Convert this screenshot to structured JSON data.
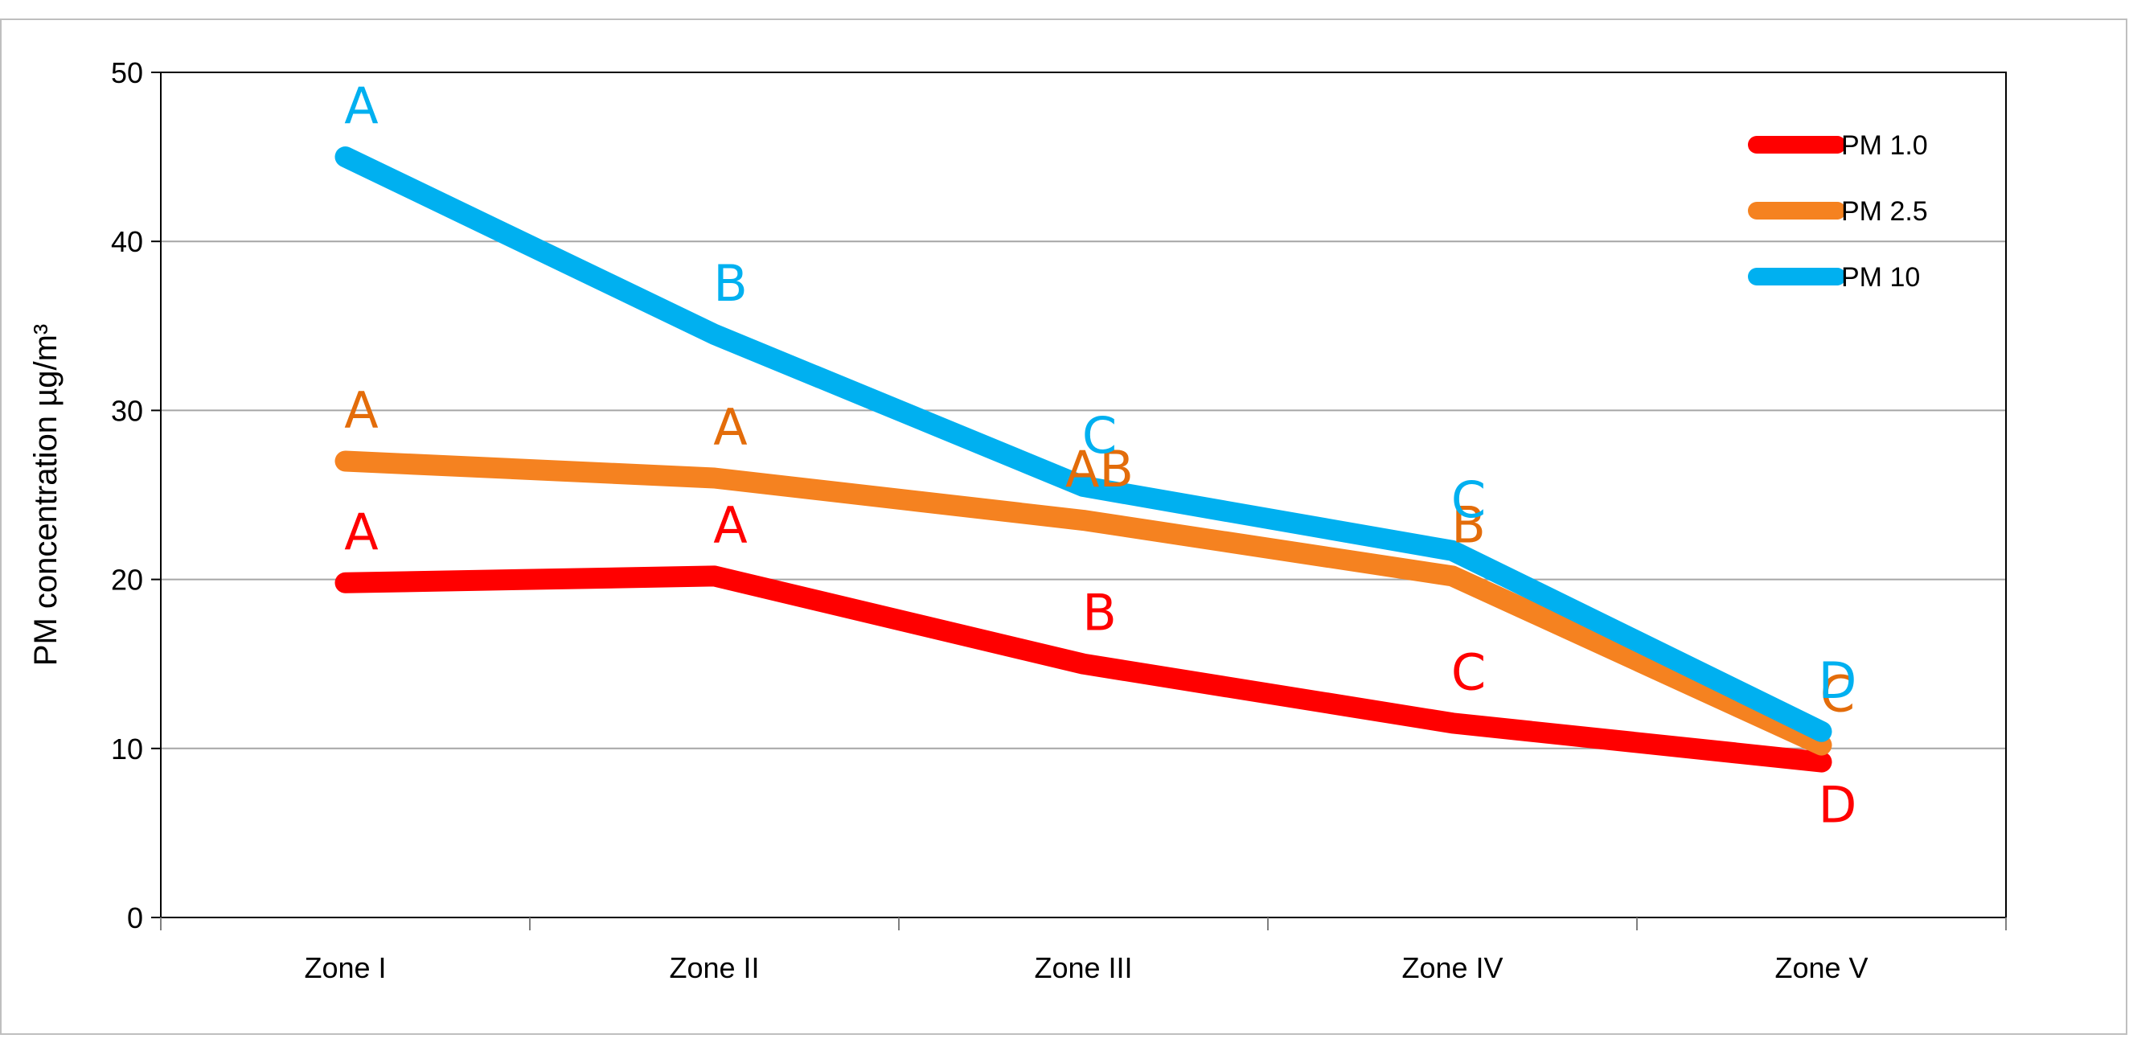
{
  "chart_data": {
    "type": "line",
    "title": "",
    "xlabel": "",
    "ylabel": "PM concentration µg/m³",
    "categories": [
      "Zone I",
      "Zone II",
      "Zone III",
      "Zone IV",
      "Zone V"
    ],
    "ylim": [
      0,
      50
    ],
    "yticks": [
      "0",
      "10",
      "20",
      "30",
      "40",
      "50"
    ],
    "grid": true,
    "legend_position": "top-right",
    "series": [
      {
        "name": "PM 1.0",
        "color": "#ff0000",
        "values": [
          19.8,
          20.2,
          15.0,
          11.5,
          9.2
        ],
        "labels": [
          "A",
          "A",
          "B",
          "C",
          "D"
        ]
      },
      {
        "name": "PM 2.5",
        "color": "#f58220",
        "values": [
          27.0,
          26.0,
          23.5,
          20.2,
          10.2
        ],
        "labels": [
          "A",
          "A",
          "AB",
          "B",
          "C"
        ]
      },
      {
        "name": "PM 10",
        "color": "#00b0f0",
        "values": [
          45.0,
          34.5,
          25.5,
          21.7,
          11.0
        ],
        "labels": [
          "A",
          "B",
          "C",
          "C",
          "D"
        ]
      }
    ],
    "label_colors": {
      "PM 1.0": "#ff0000",
      "PM 2.5": "#e36c0a",
      "PM 10": "#00b0f0"
    }
  }
}
